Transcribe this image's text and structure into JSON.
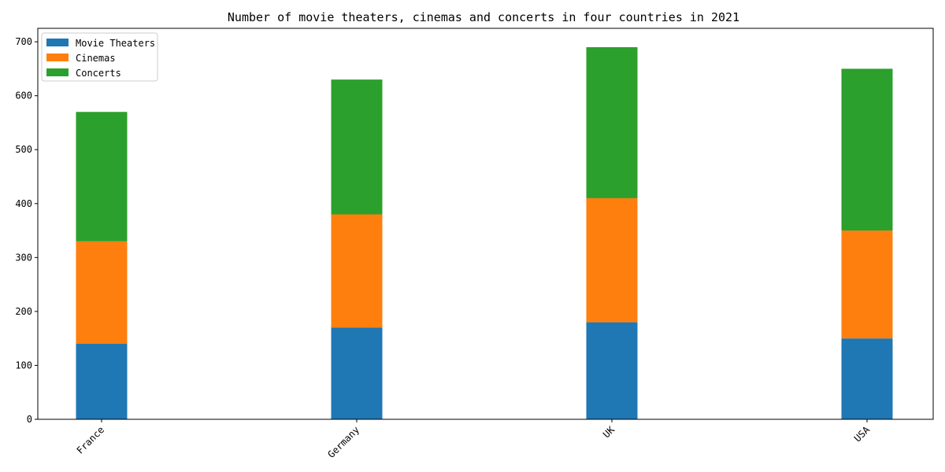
{
  "chart_data": {
    "type": "bar",
    "stacked": true,
    "title": "Number of movie theaters, cinemas and concerts in four countries in 2021",
    "xlabel": "",
    "ylabel": "",
    "categories": [
      "France",
      "Germany",
      "UK",
      "USA"
    ],
    "series": [
      {
        "name": "Movie Theaters",
        "values": [
          140,
          170,
          180,
          150
        ],
        "color": "#1f77b4"
      },
      {
        "name": "Cinemas",
        "values": [
          190,
          210,
          230,
          200
        ],
        "color": "#ff7f0e"
      },
      {
        "name": "Concerts",
        "values": [
          240,
          250,
          280,
          300
        ],
        "color": "#2ca02c"
      }
    ],
    "ylim": [
      0,
      725
    ],
    "yticks": [
      0,
      100,
      200,
      300,
      400,
      500,
      600,
      700
    ],
    "xtick_rotation": 45,
    "grid": false,
    "legend": "top-left"
  }
}
